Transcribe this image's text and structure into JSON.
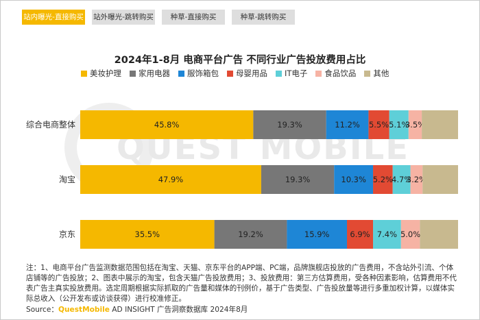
{
  "tabs": [
    {
      "label": "站内曝光-直接购买",
      "active": true
    },
    {
      "label": "站外曝光-跳转购买",
      "active": false
    },
    {
      "label": "种草-直接购买",
      "active": false
    },
    {
      "label": "种草-跳转购买",
      "active": false
    }
  ],
  "watermark": "QUEST MOBILE",
  "chart_data": {
    "type": "bar",
    "orientation": "horizontal-stacked-100",
    "title": "2024年1-8月 电商平台广告 不同行业广告投放费用占比",
    "categories": [
      "综合电商整体",
      "淘宝",
      "京东"
    ],
    "series": [
      {
        "name": "美妆护理",
        "color": "#f5b800",
        "values": [
          45.8,
          47.9,
          35.5
        ],
        "labels": [
          "45.8%",
          "47.9%",
          "35.5%"
        ]
      },
      {
        "name": "家用电器",
        "color": "#777777",
        "values": [
          19.3,
          19.3,
          19.2
        ],
        "labels": [
          "19.3%",
          "19.3%",
          "19.2%"
        ]
      },
      {
        "name": "服饰箱包",
        "color": "#1e86d6",
        "values": [
          11.2,
          10.3,
          15.9
        ],
        "labels": [
          "11.2%",
          "10.3%",
          "15.9%"
        ]
      },
      {
        "name": "母婴用品",
        "color": "#e24a33",
        "values": [
          5.5,
          5.2,
          6.9
        ],
        "labels": [
          "5.5%",
          "5.2%",
          "6.9%"
        ]
      },
      {
        "name": "IT电子",
        "color": "#5ecfd8",
        "values": [
          5.1,
          4.7,
          7.4
        ],
        "labels": [
          "5.1%",
          "4.7%",
          "7.4%"
        ]
      },
      {
        "name": "食品饮品",
        "color": "#f6b3a4",
        "values": [
          3.5,
          3.2,
          5.0
        ],
        "labels": [
          "3.5%",
          "3.2%",
          "5.0%"
        ]
      },
      {
        "name": "其他",
        "color": "#c8b98f",
        "values": [
          9.6,
          9.4,
          10.1
        ],
        "labels": [
          "",
          "",
          ""
        ]
      }
    ],
    "xlim": [
      0,
      100
    ],
    "legend_position": "top",
    "grid": false
  },
  "note": "注：1、电商平台广告监测数据范围包括在淘宝、天猫、京东平台的APP端、PC端，品牌旗舰店投放的广告费用，不含站外引流、个体店铺等的广告投放；2、图表中展示的淘宝，包含天猫广告投放费用；3、投放费用：第三方估算费用，受各种因素影响，估算费用不代表广告主真实投放费用。选定周期根据实际抓取的广告量和媒体的刊例价，基于广告类型、广告投放量等进行多重加权计算，以媒体实际总收入（公开发布或访谈获得）进行校准修正。",
  "source": {
    "prefix": "Source：",
    "brand": "QuestMobile",
    "suffix": " AD INSIGHT 广告洞察数据库 2024年8月"
  }
}
